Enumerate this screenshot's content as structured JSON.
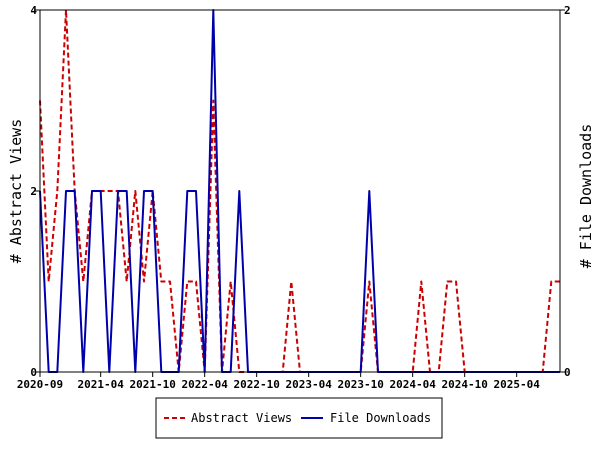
{
  "chart_data": {
    "type": "line",
    "title": "",
    "x_dates": [
      "2020-09",
      "2020-10",
      "2020-11",
      "2020-12",
      "2021-01",
      "2021-02",
      "2021-03",
      "2021-04",
      "2021-05",
      "2021-06",
      "2021-07",
      "2021-08",
      "2021-09",
      "2021-10",
      "2021-11",
      "2021-12",
      "2022-01",
      "2022-02",
      "2022-03",
      "2022-04",
      "2022-05",
      "2022-06",
      "2022-07",
      "2022-08",
      "2022-09",
      "2022-10",
      "2022-11",
      "2022-12",
      "2023-01",
      "2023-02",
      "2023-03",
      "2023-04",
      "2023-05",
      "2023-06",
      "2023-07",
      "2023-08",
      "2023-09",
      "2023-10",
      "2023-11",
      "2023-12",
      "2024-01",
      "2024-02",
      "2024-03",
      "2024-04",
      "2024-05",
      "2024-06",
      "2024-07",
      "2024-08",
      "2024-09",
      "2024-10",
      "2024-11",
      "2024-12",
      "2025-01",
      "2025-02",
      "2025-03",
      "2025-04",
      "2025-05",
      "2025-06",
      "2025-07",
      "2025-08",
      "2025-09"
    ],
    "x_tick_labels": [
      "2020-09",
      "2021-04",
      "2021-10",
      "2022-04",
      "2022-10",
      "2023-04",
      "2023-10",
      "2024-04",
      "2024-10",
      "2025-04"
    ],
    "y_left": {
      "label": "# Abstract Views",
      "ticks": [
        "0",
        "2",
        "4"
      ],
      "range": [
        0,
        4
      ]
    },
    "y_right": {
      "label": "# File Downloads",
      "ticks": [
        "0",
        "2"
      ],
      "range": [
        0,
        2
      ]
    },
    "series": [
      {
        "name": "Abstract Views",
        "axis": "left",
        "color": "#cc0000",
        "dashed": true,
        "values": [
          3,
          1,
          2,
          4,
          2,
          1,
          2,
          2,
          2,
          2,
          1,
          2,
          1,
          2,
          1,
          1,
          0,
          1,
          1,
          0,
          3,
          0,
          1,
          0,
          0,
          0,
          0,
          0,
          0,
          1,
          0,
          0,
          0,
          0,
          0,
          0,
          0,
          0,
          1,
          0,
          0,
          0,
          0,
          0,
          1,
          0,
          0,
          1,
          1,
          0,
          0,
          0,
          0,
          0,
          0,
          0,
          0,
          0,
          0,
          1,
          1
        ]
      },
      {
        "name": "File Downloads",
        "axis": "right",
        "color": "#0000aa",
        "dashed": false,
        "values": [
          1,
          0,
          0,
          1,
          1,
          0,
          1,
          1,
          0,
          1,
          1,
          0,
          1,
          1,
          0,
          0,
          0,
          1,
          1,
          0,
          2,
          0,
          0,
          1,
          0,
          0,
          0,
          0,
          0,
          0,
          0,
          0,
          0,
          0,
          0,
          0,
          0,
          0,
          1,
          0,
          0,
          0,
          0,
          0,
          0,
          0,
          0,
          0,
          0,
          0,
          0,
          0,
          0,
          0,
          0,
          0,
          0,
          0,
          0,
          0,
          0
        ]
      }
    ],
    "legend_position": "bottom-center",
    "grid": false
  }
}
